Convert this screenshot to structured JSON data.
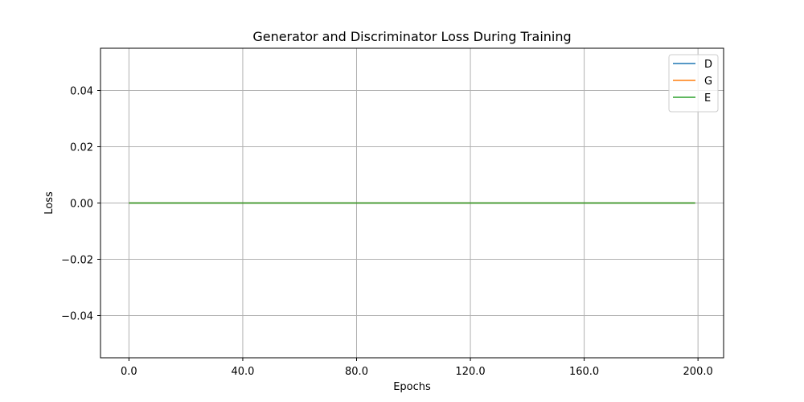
{
  "chart_data": {
    "type": "line",
    "title": "Generator and Discriminator Loss During Training",
    "xlabel": "Epochs",
    "ylabel": "Loss",
    "xlim": [
      -10,
      209
    ],
    "ylim": [
      -0.055,
      0.055
    ],
    "xticks": [
      0,
      40,
      80,
      120,
      160,
      200
    ],
    "xtick_labels": [
      "0.0",
      "40.0",
      "80.0",
      "120.0",
      "160.0",
      "200.0"
    ],
    "yticks": [
      -0.04,
      -0.02,
      0.0,
      0.02,
      0.04
    ],
    "ytick_labels": [
      "−0.04",
      "−0.02",
      "0.00",
      "0.02",
      "0.04"
    ],
    "grid": true,
    "legend_position": "top-right",
    "x": [
      0,
      199
    ],
    "series": [
      {
        "name": "D",
        "color": "#1f77b4",
        "values": [
          0,
          0
        ]
      },
      {
        "name": "G",
        "color": "#ff7f0e",
        "values": [
          0,
          0
        ]
      },
      {
        "name": "E",
        "color": "#2ca02c",
        "values": [
          0,
          0
        ]
      }
    ]
  }
}
